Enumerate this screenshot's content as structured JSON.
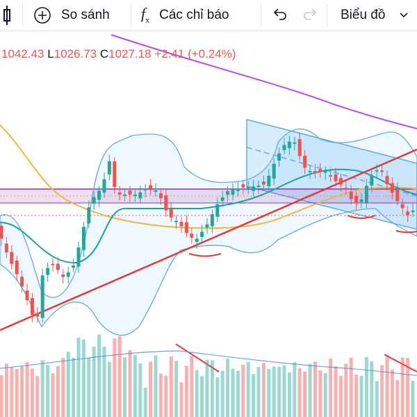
{
  "toolbar": {
    "compare": "So sánh",
    "indicators": "Các chỉ báo",
    "chart_type": "Biểu đồ"
  },
  "legend": {
    "high": "1042.43",
    "low_label": "L",
    "low": "1026.73",
    "close_label": "C",
    "close": "1027.18",
    "change": "+2.41",
    "change_pct": "(+0.24%)"
  }
}
